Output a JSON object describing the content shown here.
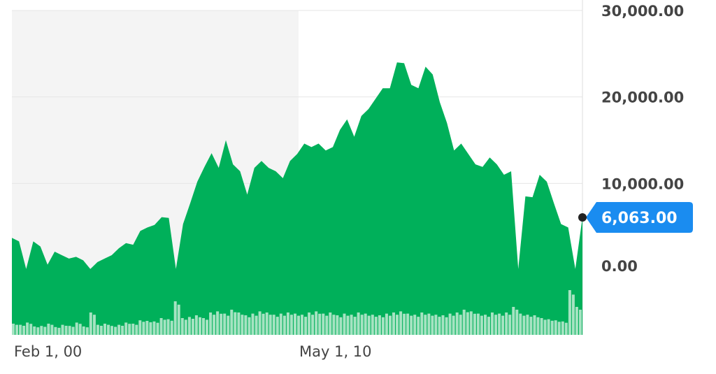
{
  "chart_data": {
    "type": "area",
    "title": "",
    "xlabel": "",
    "ylabel": "",
    "x_tick_labels": [
      "Feb 1, 00",
      "May 1, 10"
    ],
    "y_tick_labels": [
      "0.00",
      "10,000.00",
      "20,000.00",
      "30,000.00"
    ],
    "y_ticks": [
      0,
      10000,
      20000,
      30000
    ],
    "ylim": [
      0,
      30000
    ],
    "grid": true,
    "last_value": 6063,
    "last_value_label": "6,063.00",
    "colors": {
      "area": "#00b05a",
      "volume": "#a6e3c2",
      "badge": "#1a8cf0",
      "shade": "#f4f4f4",
      "grid": "#e6e6e6",
      "axis_text": "#444444"
    },
    "values": [
      3700,
      3300,
      100,
      3300,
      2700,
      600,
      2100,
      1700,
      1300,
      1500,
      1100,
      100,
      900,
      1300,
      1700,
      2500,
      3100,
      2900,
      4500,
      4900,
      5200,
      6100,
      6000,
      100,
      5300,
      7700,
      10200,
      11900,
      13500,
      11800,
      15000,
      12200,
      11400,
      8700,
      11800,
      12600,
      11800,
      11400,
      10600,
      12600,
      13400,
      14600,
      14200,
      14600,
      13800,
      14200,
      16200,
      17400,
      15400,
      17800,
      18600,
      19800,
      21000,
      21000,
      24000,
      23900,
      21400,
      21000,
      23500,
      22600,
      19400,
      17000,
      13800,
      14600,
      13400,
      12200,
      11900,
      13000,
      12200,
      11000,
      11400,
      100,
      8500,
      8400,
      11000,
      10200,
      7700,
      5300,
      4900,
      100,
      6063
    ],
    "volume": [
      20,
      18,
      22,
      15,
      16,
      20,
      14,
      18,
      16,
      22,
      15,
      40,
      18,
      20,
      16,
      18,
      22,
      20,
      26,
      25,
      24,
      30,
      28,
      60,
      30,
      32,
      35,
      30,
      40,
      42,
      38,
      45,
      40,
      35,
      38,
      42,
      40,
      36,
      38,
      40,
      38,
      36,
      40,
      42,
      38,
      40,
      35,
      38,
      36,
      40,
      38,
      36,
      35,
      38,
      40,
      42,
      38,
      36,
      40,
      38,
      36,
      35,
      38,
      40,
      45,
      42,
      38,
      36,
      40,
      38,
      40,
      50,
      38,
      36,
      35,
      30,
      28,
      26,
      24,
      80,
      50
    ]
  }
}
